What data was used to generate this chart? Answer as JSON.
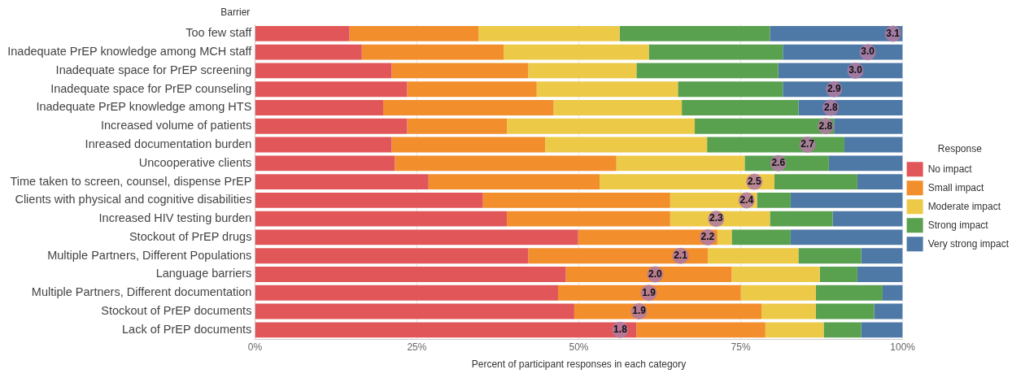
{
  "chart_data": {
    "type": "bar",
    "orientation": "horizontal",
    "stacked": true,
    "ylabel": "Barrier",
    "xlabel": "Percent of participant responses in each category",
    "legend_title": "Response",
    "legend": "right",
    "grid": "x",
    "categories": [
      "Too few staff",
      "Inadequate PrEP knowledge among MCH staff",
      "Inadequate space for PrEP screening",
      "Inadequate space for PrEP counseling",
      "Inadequate PrEP knowledge among HTS",
      "Increased volume of patients",
      "Inreased documentation burden",
      "Uncooperative clients",
      "Time taken to screen, counsel, dispense PrEP",
      "Clients with physical and cognitive disabilities",
      "Increased HIV testing burden",
      "Stockout of PrEP drugs",
      "Multiple Partners, Different Populations",
      "Language barriers",
      "Multiple Partners, Different documentation",
      "Stockout of PrEP documents",
      "Lack of PrEP documents"
    ],
    "xlim": [
      0,
      100
    ],
    "xticks": [
      {
        "value": 0,
        "label": "0%"
      },
      {
        "value": 25,
        "label": "25%"
      },
      {
        "value": 50,
        "label": "50%"
      },
      {
        "value": 75,
        "label": "75%"
      },
      {
        "value": 100,
        "label": "100%"
      }
    ],
    "series": [
      {
        "name": "No impact",
        "color": "#e15759",
        "values": [
          14.6,
          16.5,
          21.1,
          23.5,
          19.8,
          23.5,
          21.1,
          21.6,
          26.8,
          35.2,
          38.9,
          49.9,
          42.2,
          48.0,
          46.8,
          49.3,
          58.9
        ]
      },
      {
        "name": "Small impact",
        "color": "#f28e2b",
        "values": [
          19.9,
          21.9,
          21.1,
          20.0,
          26.3,
          15.4,
          23.7,
          34.2,
          26.4,
          28.9,
          25.2,
          21.5,
          27.7,
          25.6,
          28.2,
          28.9,
          19.9
        ]
      },
      {
        "name": "Moderate impact",
        "color": "#edc948",
        "values": [
          21.8,
          22.4,
          16.7,
          21.8,
          19.8,
          29.0,
          25.0,
          19.8,
          27.0,
          13.4,
          15.4,
          2.2,
          14.0,
          13.6,
          11.6,
          8.4,
          9.0
        ]
      },
      {
        "name": "Strong impact",
        "color": "#59a14f",
        "values": [
          23.2,
          20.7,
          21.9,
          16.2,
          18.0,
          21.5,
          21.2,
          13.0,
          12.8,
          5.2,
          9.7,
          9.1,
          9.7,
          5.8,
          10.3,
          9.0,
          5.8
        ]
      },
      {
        "name": "Very strong impact",
        "color": "#4e79a7",
        "values": [
          20.5,
          18.5,
          19.2,
          18.5,
          16.1,
          10.6,
          9.0,
          11.4,
          7.0,
          17.3,
          10.8,
          17.3,
          6.4,
          7.0,
          3.1,
          4.4,
          6.4
        ]
      }
    ],
    "annotations": [
      {
        "text": "3.1",
        "x": 98.5,
        "y": "Too few staff"
      },
      {
        "text": "3.0",
        "x": 94.6,
        "y": "Inadequate PrEP knowledge among MCH staff"
      },
      {
        "text": "3.0",
        "x": 92.7,
        "y": "Inadequate space for PrEP screening"
      },
      {
        "text": "2.9",
        "x": 89.4,
        "y": "Inadequate space for PrEP counseling"
      },
      {
        "text": "2.8",
        "x": 88.9,
        "y": "Inadequate PrEP knowledge among HTS"
      },
      {
        "text": "2.8",
        "x": 88.1,
        "y": "Increased volume of patients"
      },
      {
        "text": "2.7",
        "x": 85.3,
        "y": "Inreased documentation burden"
      },
      {
        "text": "2.6",
        "x": 80.8,
        "y": "Uncooperative clients"
      },
      {
        "text": "2.5",
        "x": 77.1,
        "y": "Time taken to screen, counsel, dispense PrEP"
      },
      {
        "text": "2.4",
        "x": 75.9,
        "y": "Clients with physical and cognitive disabilities"
      },
      {
        "text": "2.3",
        "x": 71.2,
        "y": "Increased HIV testing burden"
      },
      {
        "text": "2.2",
        "x": 69.9,
        "y": "Stockout of PrEP drugs"
      },
      {
        "text": "2.1",
        "x": 65.7,
        "y": "Multiple Partners, Different Populations"
      },
      {
        "text": "2.0",
        "x": 61.8,
        "y": "Language barriers"
      },
      {
        "text": "1.9",
        "x": 60.8,
        "y": "Multiple Partners, Different documentation"
      },
      {
        "text": "1.9",
        "x": 59.3,
        "y": "Stockout of PrEP documents"
      },
      {
        "text": "1.8",
        "x": 56.4,
        "y": "Lack of PrEP documents"
      }
    ]
  }
}
